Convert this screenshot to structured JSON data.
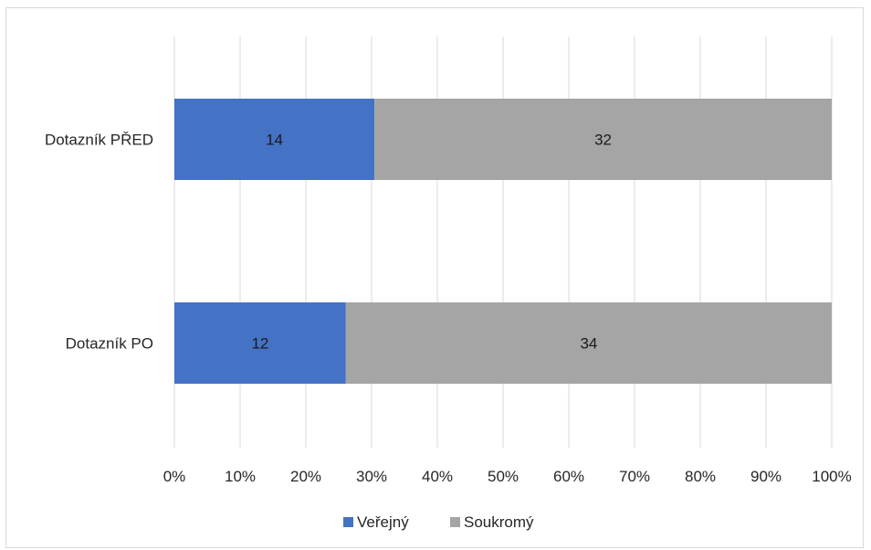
{
  "chart_data": {
    "type": "bar",
    "orientation": "horizontal",
    "stacking": "percent",
    "categories": [
      "Dotazník PŘED",
      "Dotazník PO"
    ],
    "series": [
      {
        "name": "Veřejný",
        "values": [
          14,
          12
        ],
        "color": "#4472c4"
      },
      {
        "name": "Soukromý",
        "values": [
          32,
          34
        ],
        "color": "#a5a5a5"
      }
    ],
    "x_ticks": [
      "0%",
      "10%",
      "20%",
      "30%",
      "40%",
      "50%",
      "60%",
      "70%",
      "80%",
      "90%",
      "100%"
    ],
    "xlim": [
      0,
      100
    ],
    "grid": true,
    "legend": "bottom",
    "title": "",
    "xlabel": "",
    "ylabel": ""
  }
}
